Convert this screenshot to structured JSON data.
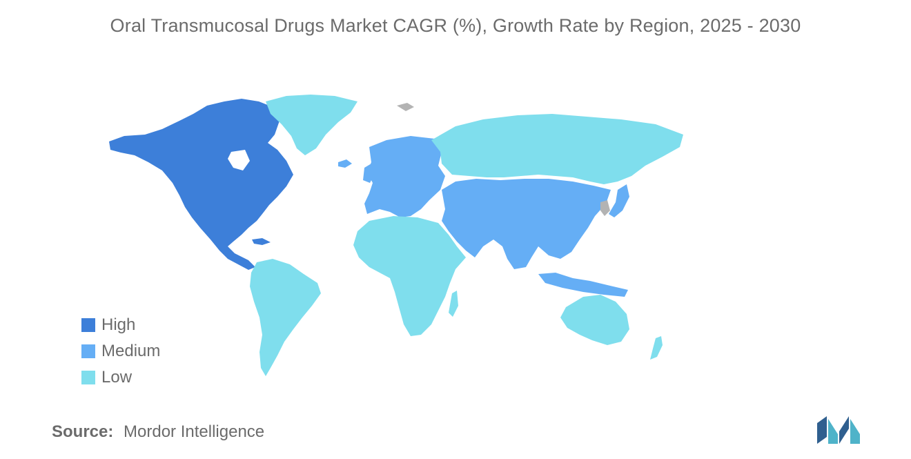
{
  "title": "Oral Transmucosal Drugs Market CAGR (%), Growth Rate by Region, 2025 - 2030",
  "colors": {
    "High": "#3d7fd9",
    "Medium": "#65aef5",
    "Low": "#7fdeed",
    "NoData": "#b3b3b3"
  },
  "legend": [
    {
      "label": "High",
      "color": "#3d7fd9"
    },
    {
      "label": "Medium",
      "color": "#65aef5"
    },
    {
      "label": "Low",
      "color": "#7fdeed"
    }
  ],
  "regions": [
    {
      "region": "North America",
      "level": "High"
    },
    {
      "region": "Europe",
      "level": "Medium"
    },
    {
      "region": "Asia Pacific",
      "level": "Medium"
    },
    {
      "region": "Middle East",
      "level": "Medium"
    },
    {
      "region": "South America",
      "level": "Low"
    },
    {
      "region": "Africa",
      "level": "Low"
    },
    {
      "region": "Russia",
      "level": "Low"
    },
    {
      "region": "Australia",
      "level": "Low"
    },
    {
      "region": "Greenland",
      "level": "Low"
    }
  ],
  "source": {
    "label": "Source:",
    "value": "Mordor Intelligence"
  }
}
